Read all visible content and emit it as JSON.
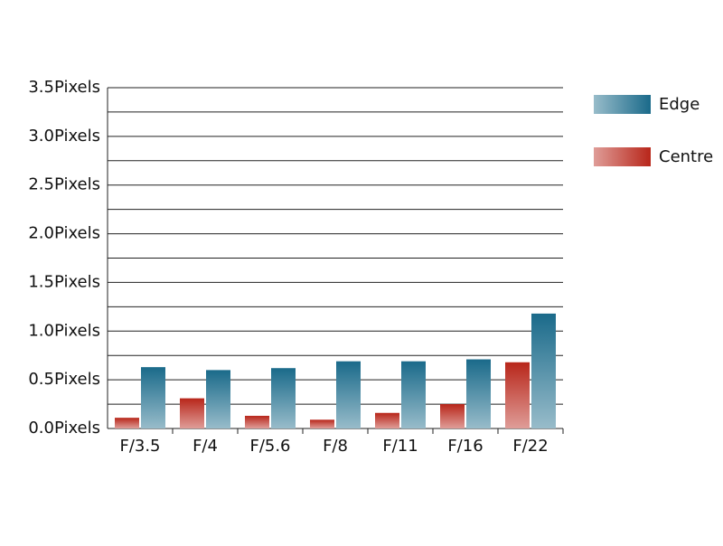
{
  "chart_data": {
    "type": "bar",
    "categories": [
      "F/3.5",
      "F/4",
      "F/5.6",
      "F/8",
      "F/11",
      "F/16",
      "F/22"
    ],
    "series": [
      {
        "name": "Edge",
        "color": "#1a6a8a",
        "values": [
          0.63,
          0.6,
          0.62,
          0.69,
          0.69,
          0.71,
          1.18
        ]
      },
      {
        "name": "Centre",
        "color": "#b8261a",
        "values": [
          0.11,
          0.31,
          0.13,
          0.09,
          0.16,
          0.25,
          0.68
        ]
      }
    ],
    "ylim": [
      0,
      3.5
    ],
    "yticks": [
      {
        "value": 0,
        "label": "0.0Pixels"
      },
      {
        "value": 0.5,
        "label": "0.5Pixels"
      },
      {
        "value": 1,
        "label": "1.0Pixels"
      },
      {
        "value": 1.5,
        "label": "1.5Pixels"
      },
      {
        "value": 2,
        "label": "2.0Pixels"
      },
      {
        "value": 2.5,
        "label": "2.5Pixels"
      },
      {
        "value": 3,
        "label": "3.0Pixels"
      },
      {
        "value": 3.5,
        "label": "3.5Pixels"
      }
    ],
    "minor_gridlines": [
      0.25,
      0.75,
      1.25,
      1.75,
      2.25,
      2.75,
      3.25
    ],
    "grid": true,
    "legend": "right"
  }
}
